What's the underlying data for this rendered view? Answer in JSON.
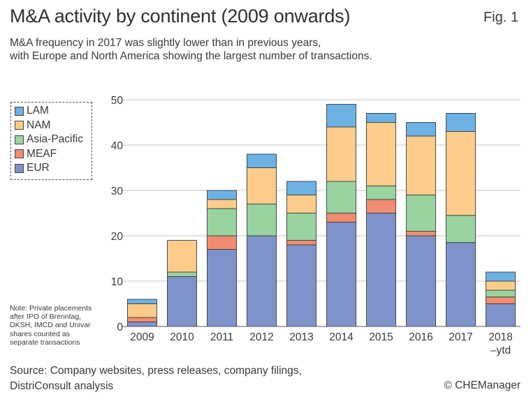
{
  "header": {
    "title": "M&A activity by continent (2009 onwards)",
    "fig_label": "Fig. 1",
    "subtitle_lines": [
      "M&A frequency in 2017 was slightly lower than in previous years,",
      "with Europe and North America showing the largest number of transactions."
    ]
  },
  "note_lines": [
    "Note: Private placements",
    "after IPO of Brenntag,",
    "DKSH, IMCD and Univar",
    "shares counted as",
    "separate transactions"
  ],
  "footer": {
    "source_lines": [
      "Source: Company websites, press releases, company filings,",
      "DistriConsult analysis"
    ],
    "copyright": "© CHEManager"
  },
  "chart_data": {
    "type": "bar",
    "stacked": true,
    "categories": [
      "2009",
      "2010",
      "2011",
      "2012",
      "2013",
      "2014",
      "2015",
      "2016",
      "2017",
      "2018\n–ytd"
    ],
    "ylim": [
      0,
      50
    ],
    "yticks": [
      0,
      10,
      20,
      30,
      40,
      50
    ],
    "grid": true,
    "legend_position": "top-left",
    "series": [
      {
        "name": "EUR",
        "color": "#7f93cb",
        "values": [
          1,
          11,
          17,
          20,
          18,
          23,
          25,
          20,
          18.5,
          5
        ]
      },
      {
        "name": "MEAF",
        "color": "#f08c70",
        "values": [
          1,
          0,
          3,
          0,
          1,
          2,
          3,
          1,
          0,
          1.5
        ]
      },
      {
        "name": "Asia-Pacific",
        "color": "#98d3a0",
        "values": [
          0,
          1,
          6,
          7,
          6,
          7,
          3,
          8,
          6,
          1.5
        ]
      },
      {
        "name": "NAM",
        "color": "#fdcc8a",
        "values": [
          3,
          7,
          2,
          8,
          4,
          12,
          14,
          13,
          18.5,
          2
        ]
      },
      {
        "name": "LAM",
        "color": "#6cb2e4",
        "values": [
          1,
          0,
          2,
          3,
          3,
          5,
          2,
          3,
          4,
          2
        ]
      }
    ],
    "legend_order": [
      "LAM",
      "NAM",
      "Asia-Pacific",
      "MEAF",
      "EUR"
    ]
  }
}
